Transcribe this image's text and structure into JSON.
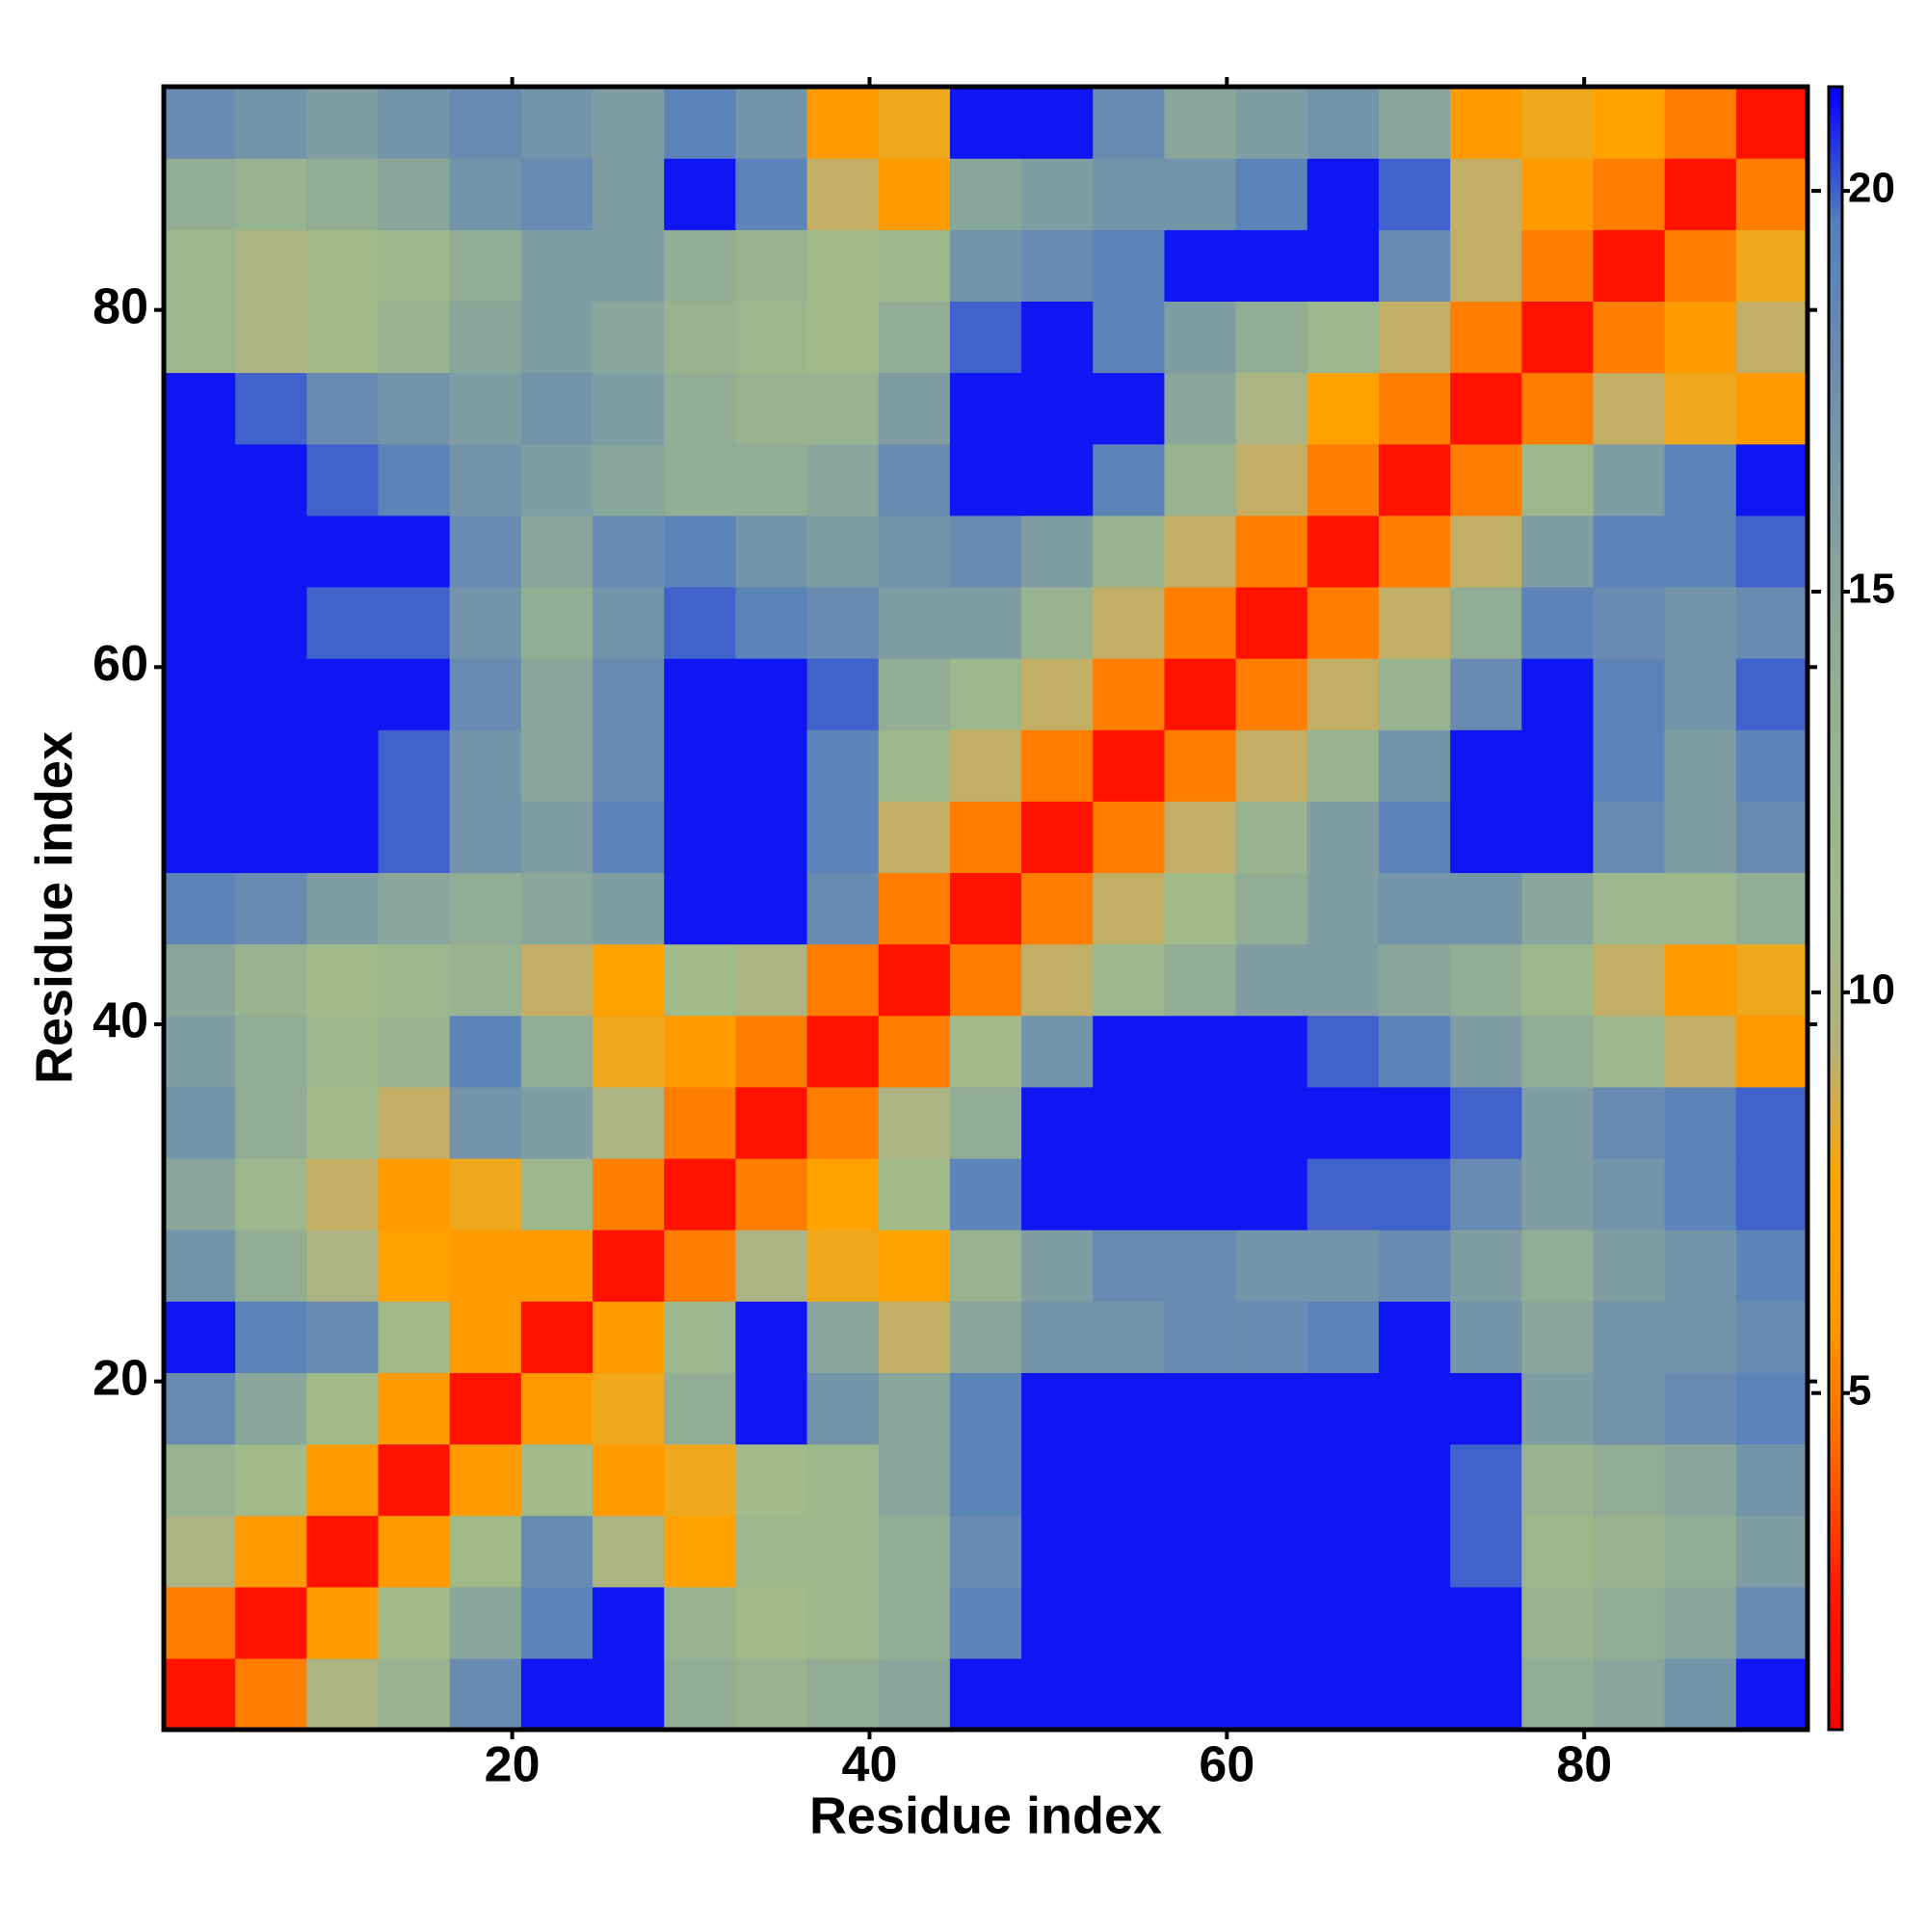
{
  "chart_data": {
    "type": "heatmap",
    "xlabel": "Residue index",
    "ylabel": "Residue index",
    "xlim": [
      0.5,
      92.5
    ],
    "ylim": [
      0.5,
      92.5
    ],
    "xticks": [
      20,
      40,
      60,
      80
    ],
    "yticks": [
      20,
      40,
      60,
      80
    ],
    "xbins": [
      0.5,
      4.5,
      8.5,
      12.5,
      16.5,
      20.5,
      24.5,
      28.5,
      32.5,
      36.5,
      40.5,
      44.5,
      48.5,
      52.5,
      56.5,
      60.5,
      64.5,
      68.5,
      72.5,
      76.5,
      80.5,
      84.5,
      88.5,
      92.5
    ],
    "ybins": [
      0.5,
      4.5,
      8.5,
      12.5,
      16.5,
      20.5,
      24.5,
      28.5,
      32.5,
      36.5,
      40.5,
      44.5,
      48.5,
      52.5,
      56.5,
      60.5,
      64.5,
      68.5,
      72.5,
      76.5,
      80.5,
      84.5,
      88.5,
      92.5
    ],
    "z": [
      [
        2,
        5,
        10,
        13,
        18,
        21,
        21,
        14,
        13,
        14,
        15,
        21,
        21,
        21,
        21,
        21,
        21,
        21,
        21,
        14,
        15,
        17,
        21
      ],
      [
        5,
        2,
        6,
        11,
        15,
        19,
        21,
        13,
        11,
        12,
        14,
        19,
        21,
        21,
        21,
        21,
        21,
        21,
        21,
        13,
        14,
        15,
        18
      ],
      [
        10,
        6,
        2,
        6,
        11,
        18,
        10,
        7,
        12,
        12,
        14,
        18,
        21,
        21,
        21,
        21,
        21,
        21,
        20,
        12,
        13,
        14,
        16
      ],
      [
        13,
        11,
        6,
        2,
        6,
        11,
        6,
        8,
        11,
        12,
        15,
        19,
        21,
        21,
        21,
        21,
        21,
        21,
        20,
        13,
        14,
        15,
        17
      ],
      [
        18,
        15,
        11,
        6,
        2,
        6,
        8,
        14,
        21,
        17,
        15,
        19,
        21,
        21,
        21,
        21,
        21,
        21,
        21,
        16,
        17,
        18,
        19
      ],
      [
        21,
        19,
        18,
        11,
        6,
        2,
        6,
        12,
        21,
        15,
        9,
        15,
        17,
        17,
        18,
        18,
        19,
        21,
        17,
        15,
        17,
        17,
        18
      ],
      [
        17,
        14,
        10,
        7,
        6,
        6,
        2,
        5,
        10,
        8,
        7,
        13,
        16,
        18,
        18,
        17,
        17,
        18,
        16,
        14,
        16,
        17,
        19
      ],
      [
        15,
        12,
        9,
        6,
        8,
        12,
        5,
        2,
        5,
        7,
        11,
        19,
        21,
        21,
        21,
        21,
        20,
        20,
        18,
        16,
        17,
        19,
        20
      ],
      [
        17,
        14,
        11,
        9,
        17,
        16,
        10,
        5,
        2,
        5,
        10,
        14,
        21,
        21,
        21,
        21,
        21,
        21,
        20,
        16,
        18,
        19,
        20
      ],
      [
        16,
        14,
        12,
        13,
        19,
        14,
        8,
        6,
        5,
        2,
        5,
        11,
        17,
        21,
        21,
        21,
        20,
        19,
        16,
        14,
        12,
        9,
        6
      ],
      [
        15,
        13,
        11,
        12,
        13,
        9,
        7,
        11,
        10,
        5,
        2,
        5,
        9,
        12,
        14,
        16,
        16,
        15,
        14,
        12,
        9,
        6,
        8
      ],
      [
        19,
        18,
        16,
        15,
        14,
        15,
        16,
        21,
        21,
        18,
        5,
        2,
        5,
        9,
        11,
        14,
        16,
        17,
        17,
        15,
        12,
        12,
        14
      ],
      [
        21,
        21,
        21,
        20,
        17,
        16,
        19,
        21,
        21,
        19,
        9,
        5,
        2,
        5,
        9,
        13,
        16,
        19,
        21,
        21,
        18,
        16,
        18
      ],
      [
        21,
        21,
        21,
        20,
        17,
        15,
        18,
        21,
        21,
        19,
        12,
        9,
        5,
        2,
        5,
        9,
        13,
        17,
        21,
        21,
        19,
        16,
        19
      ],
      [
        21,
        21,
        21,
        21,
        18,
        15,
        18,
        21,
        21,
        20,
        14,
        12,
        9,
        5,
        2,
        5,
        9,
        13,
        18,
        21,
        19,
        17,
        20
      ],
      [
        21,
        21,
        20,
        20,
        17,
        14,
        17,
        20,
        19,
        18,
        16,
        16,
        13,
        9,
        5,
        2,
        5,
        9,
        14,
        19,
        18,
        17,
        18
      ],
      [
        21,
        21,
        21,
        21,
        18,
        15,
        18,
        19,
        17,
        16,
        17,
        18,
        16,
        13,
        9,
        5,
        2,
        5,
        9,
        16,
        19,
        19,
        20
      ],
      [
        21,
        21,
        20,
        19,
        17,
        16,
        15,
        14,
        14,
        15,
        18,
        21,
        21,
        19,
        13,
        9,
        5,
        2,
        5,
        12,
        16,
        19,
        21
      ],
      [
        21,
        20,
        18,
        17,
        16,
        17,
        16,
        14,
        13,
        13,
        16,
        21,
        21,
        21,
        15,
        10,
        7,
        5,
        2,
        5,
        9,
        8,
        6
      ],
      [
        12,
        10,
        11,
        13,
        15,
        16,
        15,
        13,
        12,
        11,
        14,
        20,
        21,
        19,
        16,
        14,
        12,
        9,
        5,
        2,
        5,
        6,
        9
      ],
      [
        12,
        10,
        11,
        12,
        14,
        16,
        16,
        14,
        13,
        11,
        12,
        17,
        18,
        19,
        21,
        21,
        21,
        18,
        9,
        5,
        2,
        5,
        8
      ],
      [
        14,
        13,
        14,
        15,
        17,
        18,
        16,
        21,
        19,
        9,
        6,
        15,
        16,
        17,
        17,
        19,
        21,
        20,
        9,
        6,
        5,
        2,
        5
      ],
      [
        18,
        17,
        16,
        17,
        18,
        17,
        16,
        19,
        17,
        6,
        8,
        21,
        21,
        18,
        15,
        16,
        17,
        15,
        6,
        8,
        7,
        5,
        2
      ]
    ],
    "zlim": [
      0.8,
      21.3
    ],
    "zticks": [
      5,
      10,
      15,
      20
    ],
    "colorscale": [
      "#ff0000",
      "#ff1a00",
      "#ff6600",
      "#ff9900",
      "#ffa500",
      "#b3b07e",
      "#a0ba8a",
      "#9ab48e",
      "#8eaa96",
      "#7e9ca4",
      "#6a8cb0",
      "#5580bc",
      "#0000ff"
    ]
  }
}
